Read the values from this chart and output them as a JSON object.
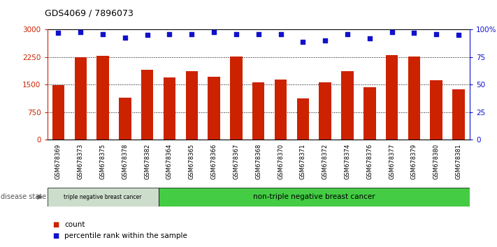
{
  "title": "GDS4069 / 7896073",
  "samples": [
    "GSM678369",
    "GSM678373",
    "GSM678375",
    "GSM678378",
    "GSM678382",
    "GSM678364",
    "GSM678365",
    "GSM678366",
    "GSM678367",
    "GSM678368",
    "GSM678370",
    "GSM678371",
    "GSM678372",
    "GSM678374",
    "GSM678376",
    "GSM678377",
    "GSM678379",
    "GSM678380",
    "GSM678381"
  ],
  "counts": [
    1480,
    2240,
    2280,
    1150,
    1900,
    1700,
    1870,
    1720,
    2260,
    1570,
    1630,
    1120,
    1560,
    1870,
    1430,
    2310,
    2270,
    1610,
    1380
  ],
  "percentile_ranks": [
    97,
    98,
    96,
    93,
    95,
    96,
    96,
    98,
    96,
    96,
    96,
    89,
    90,
    96,
    92,
    98,
    97,
    96,
    95
  ],
  "bar_color": "#cc2200",
  "dot_color": "#1111cc",
  "ylim_left": [
    0,
    3000
  ],
  "ylim_right": [
    0,
    100
  ],
  "yticks_left": [
    0,
    750,
    1500,
    2250,
    3000
  ],
  "yticks_right": [
    0,
    25,
    50,
    75,
    100
  ],
  "ytick_labels_right": [
    "0",
    "25",
    "50",
    "75",
    "100%"
  ],
  "grid_values": [
    750,
    1500,
    2250
  ],
  "triple_neg_count": 5,
  "group1_label": "triple negative breast cancer",
  "group2_label": "non-triple negative breast cancer",
  "group1_color": "#ccddcc",
  "group2_color": "#44cc44",
  "disease_state_label": "disease state",
  "legend_count_label": "count",
  "legend_percentile_label": "percentile rank within the sample",
  "bg_color": "#ffffff",
  "tick_area_color": "#cccccc",
  "bar_width": 0.55
}
